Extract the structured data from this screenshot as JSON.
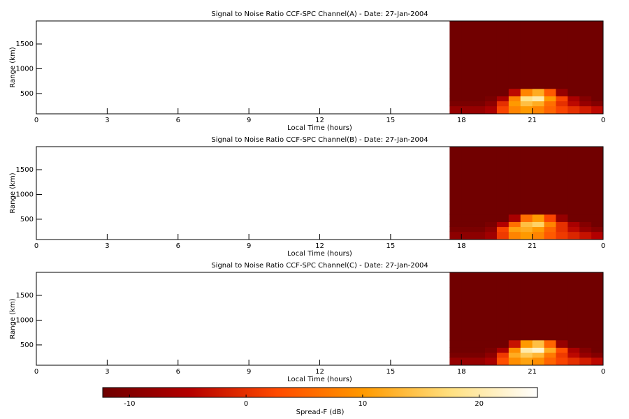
{
  "chart_data": [
    {
      "type": "heatmap",
      "title": "Signal to Noise Ratio CCF-SPC Channel(A) - Date: 27-Jan-2004",
      "xlabel": "Local Time (hours)",
      "ylabel": "Range (km)",
      "xlim": [
        0,
        24
      ],
      "xticks": [
        0,
        3,
        6,
        9,
        12,
        15,
        18,
        21,
        {
          "value": 24,
          "label": "0"
        }
      ],
      "ylim": [
        90,
        1965
      ],
      "yticks": [
        500,
        1000,
        1500
      ],
      "x_edges": [
        17.5,
        18,
        18.5,
        19,
        19.5,
        20,
        20.5,
        21,
        21.5,
        22,
        22.5,
        23,
        23.5,
        24
      ],
      "y_edges": [
        90,
        250,
        350,
        450,
        600,
        1965
      ],
      "z": [
        [
          -8,
          -8,
          -8,
          -6,
          2,
          8,
          10,
          8,
          5,
          2,
          0,
          -2,
          -4
        ],
        [
          -11,
          -11,
          -11,
          -9,
          0,
          10,
          14,
          12,
          6,
          0,
          -4,
          -8,
          -10
        ],
        [
          -12,
          -12,
          -12,
          -11,
          -6,
          8,
          18,
          20,
          10,
          2,
          -6,
          -10,
          -12
        ],
        [
          -12,
          -12,
          -12,
          -12,
          -12,
          -4,
          8,
          12,
          4,
          -8,
          -12,
          -12,
          -12
        ],
        [
          -12,
          -12,
          -12,
          -12,
          -12,
          -12,
          -12,
          -12,
          -12,
          -12,
          -12,
          -12,
          -12
        ]
      ]
    },
    {
      "type": "heatmap",
      "title": "Signal to Noise Ratio CCF-SPC Channel(B) - Date: 27-Jan-2004",
      "xlabel": "Local Time (hours)",
      "ylabel": "Range (km)",
      "xlim": [
        0,
        24
      ],
      "xticks": [
        0,
        3,
        6,
        9,
        12,
        15,
        18,
        21,
        {
          "value": 24,
          "label": "0"
        }
      ],
      "ylim": [
        90,
        1965
      ],
      "yticks": [
        500,
        1000,
        1500
      ],
      "x_edges": [
        17.5,
        18,
        18.5,
        19,
        19.5,
        20,
        20.5,
        21,
        21.5,
        22,
        22.5,
        23,
        23.5,
        24
      ],
      "y_edges": [
        90,
        250,
        350,
        450,
        600,
        1965
      ],
      "z": [
        [
          -9,
          -9,
          -9,
          -7,
          1,
          8,
          10,
          8,
          4,
          1,
          -1,
          -3,
          -5
        ],
        [
          -11,
          -11,
          -11,
          -9,
          2,
          11,
          12,
          10,
          5,
          0,
          -4,
          -8,
          -10
        ],
        [
          -12,
          -12,
          -12,
          -11,
          -5,
          6,
          14,
          16,
          8,
          0,
          -6,
          -10,
          -12
        ],
        [
          -12,
          -12,
          -12,
          -12,
          -12,
          -6,
          6,
          10,
          2,
          -8,
          -12,
          -12,
          -12
        ],
        [
          -12,
          -12,
          -12,
          -12,
          -12,
          -12,
          -12,
          -12,
          -12,
          -12,
          -12,
          -12,
          -12
        ]
      ]
    },
    {
      "type": "heatmap",
      "title": "Signal to Noise Ratio CCF-SPC Channel(C) - Date: 27-Jan-2004",
      "xlabel": "Local Time (hours)",
      "ylabel": "Range (km)",
      "xlim": [
        0,
        24
      ],
      "xticks": [
        0,
        3,
        6,
        9,
        12,
        15,
        18,
        21,
        {
          "value": 24,
          "label": "0"
        }
      ],
      "ylim": [
        90,
        1965
      ],
      "yticks": [
        500,
        1000,
        1500
      ],
      "x_edges": [
        17.5,
        18,
        18.5,
        19,
        19.5,
        20,
        20.5,
        21,
        21.5,
        22,
        22.5,
        23,
        23.5,
        24
      ],
      "y_edges": [
        90,
        250,
        350,
        450,
        600,
        1965
      ],
      "z": [
        [
          -8,
          -8,
          -8,
          -6,
          3,
          9,
          11,
          9,
          5,
          2,
          0,
          -2,
          -4
        ],
        [
          -11,
          -11,
          -11,
          -9,
          1,
          12,
          15,
          13,
          7,
          1,
          -4,
          -8,
          -10
        ],
        [
          -12,
          -12,
          -12,
          -11,
          -6,
          9,
          20,
          22,
          12,
          3,
          -6,
          -10,
          -12
        ],
        [
          -12,
          -12,
          -12,
          -12,
          -12,
          -3,
          10,
          14,
          5,
          -8,
          -12,
          -12,
          -12
        ],
        [
          -12,
          -12,
          -12,
          -12,
          -12,
          -12,
          -12,
          -12,
          -12,
          -12,
          -12,
          -12,
          -12
        ]
      ]
    },
    {
      "type": "colorbar",
      "xlabel": "Spread-F (dB)",
      "xlim": [
        -12.3,
        25
      ],
      "xticks": [
        -10,
        0,
        10,
        20
      ],
      "colormap": [
        "#6e0000",
        "#b40000",
        "#ff4a00",
        "#ff9a00",
        "#ffe080",
        "#ffffff"
      ]
    }
  ]
}
